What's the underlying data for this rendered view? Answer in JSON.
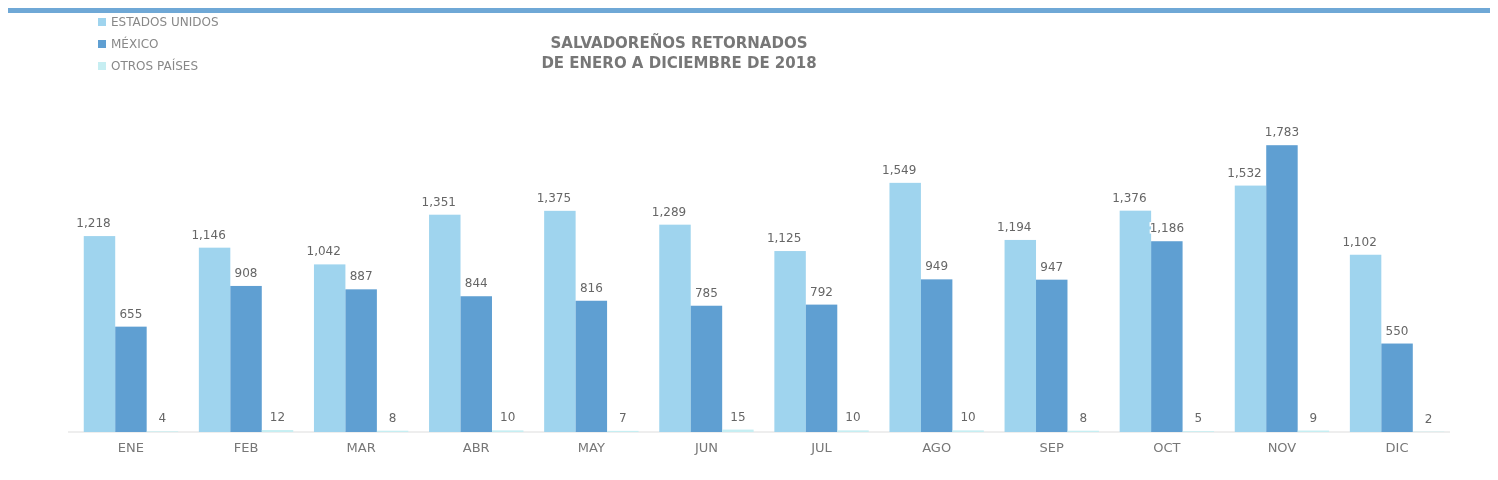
{
  "chart_data": {
    "type": "bar",
    "title": "SALVADOREÑOS RETORNADOS\nDE ENERO A DICIEMBRE DE 2018",
    "categories": [
      "ENE",
      "FEB",
      "MAR",
      "ABR",
      "MAY",
      "JUN",
      "JUL",
      "AGO",
      "SEP",
      "OCT",
      "NOV",
      "DIC"
    ],
    "series": [
      {
        "name": "ESTADOS UNIDOS",
        "color": "#9fd4ee",
        "values": [
          1218,
          1146,
          1042,
          1351,
          1375,
          1289,
          1125,
          1549,
          1194,
          1376,
          1532,
          1102
        ],
        "value_labels": [
          "1,218",
          "1,146",
          "1,042",
          "1,351",
          "1,375",
          "1,289",
          "1,125",
          "1,549",
          "1,194",
          "1,376",
          "1,532",
          "1,102"
        ]
      },
      {
        "name": "MÉXICO",
        "color": "#5f9fd2",
        "values": [
          655,
          908,
          887,
          844,
          816,
          785,
          792,
          949,
          947,
          1186,
          1783,
          550
        ],
        "value_labels": [
          "655",
          "908",
          "887",
          "844",
          "816",
          "785",
          "792",
          "949",
          "947",
          "1,186",
          "1,783",
          "550"
        ]
      },
      {
        "name": "OTROS PAÍSES",
        "color": "#c6eef2",
        "values": [
          4,
          12,
          8,
          10,
          7,
          15,
          10,
          10,
          8,
          5,
          9,
          2
        ],
        "value_labels": [
          "4",
          "12",
          "8",
          "10",
          "7",
          "15",
          "10",
          "10",
          "8",
          "5",
          "9",
          "2"
        ]
      }
    ],
    "legend": "top left"
  }
}
